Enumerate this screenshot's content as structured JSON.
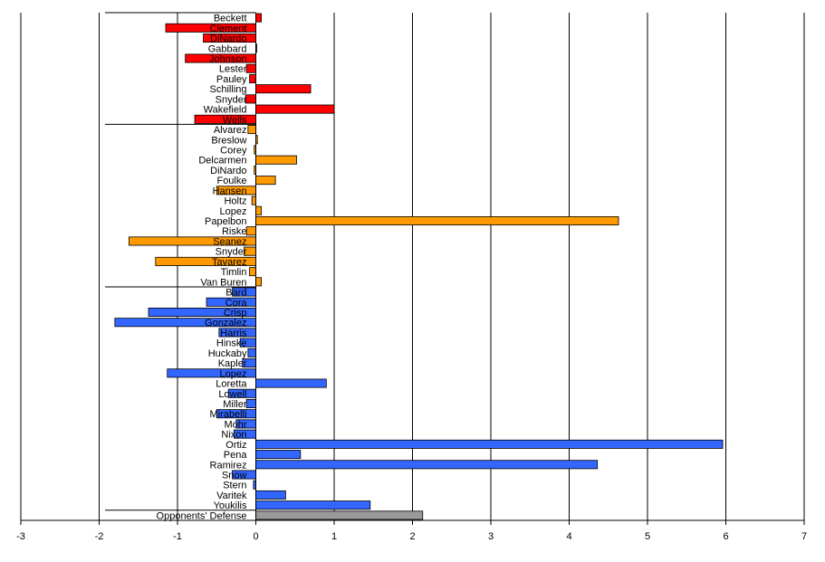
{
  "chart_data": {
    "type": "bar",
    "orientation": "horizontal",
    "grid": true,
    "xlim": [
      -3,
      7
    ],
    "xticks": [
      "-3",
      "-2",
      "-1",
      "0",
      "1",
      "2",
      "3",
      "4",
      "5",
      "6",
      "7"
    ],
    "legend": "none",
    "categories": [
      "Beckett",
      "Clement",
      "DiNardo",
      "Gabbard",
      "Johnson",
      "Lester",
      "Pauley",
      "Schilling",
      "Snyder",
      "Wakefield",
      "Wells",
      "Alvarez",
      "Breslow",
      "Corey",
      "Delcarmen",
      "DiNardo",
      "Foulke",
      "Hansen",
      "Holtz",
      "Lopez",
      "Papelbon",
      "Riske",
      "Seanez",
      "Snyder",
      "Tavarez",
      "Timlin",
      "Van Buren",
      "Bard",
      "Cora",
      "Crisp",
      "Gonzalez",
      "Harris",
      "Hinske",
      "Huckaby",
      "Kapler",
      "Lopez",
      "Loretta",
      "Lowell",
      "Miller",
      "Mirabelli",
      "Mohr",
      "Nixon",
      "Ortiz",
      "Pena",
      "Ramirez",
      "Snow",
      "Stern",
      "Varitek",
      "Youkilis",
      "Opponents' Defense"
    ],
    "values": [
      0.07,
      -1.15,
      -0.67,
      0.01,
      -0.9,
      -0.12,
      -0.08,
      0.7,
      -0.13,
      1.0,
      -0.78,
      -0.1,
      0.02,
      -0.02,
      0.52,
      -0.02,
      0.25,
      -0.5,
      -0.05,
      0.07,
      4.63,
      -0.12,
      -1.62,
      -0.15,
      -1.28,
      -0.08,
      0.07,
      -0.3,
      -0.63,
      -1.37,
      -1.8,
      -0.47,
      -0.2,
      -0.1,
      -0.17,
      -1.13,
      0.9,
      -0.35,
      -0.12,
      -0.5,
      -0.25,
      -0.28,
      5.96,
      0.57,
      4.36,
      -0.3,
      -0.03,
      0.38,
      1.46,
      2.13
    ],
    "groups": [
      {
        "start": 0,
        "end": 10,
        "color": "#ff0000"
      },
      {
        "start": 11,
        "end": 26,
        "color": "#ff9900"
      },
      {
        "start": 27,
        "end": 48,
        "color": "#3366ff"
      },
      {
        "start": 49,
        "end": 49,
        "color": "#999999"
      }
    ]
  }
}
